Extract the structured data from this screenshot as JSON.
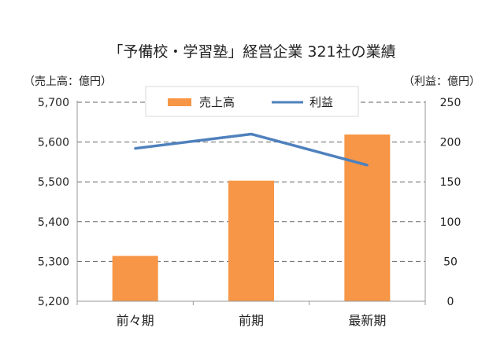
{
  "chart_data": {
    "type": "bar",
    "title": "「予備校・学習塾」経営企業 321社の業績",
    "left_unit": "（売上高：億円）",
    "right_unit": "（利益：億円）",
    "categories": [
      "前々期",
      "前期",
      "最新期"
    ],
    "ylim": [
      5200,
      5700
    ],
    "yticks": [
      "5,200",
      "5,300",
      "5,400",
      "5,500",
      "5,600",
      "5,700"
    ],
    "y2lim": [
      0,
      250
    ],
    "y2ticks": [
      "0",
      "50",
      "100",
      "150",
      "200",
      "250"
    ],
    "grid": "dashed",
    "legend_placement": "top-center",
    "series": [
      {
        "name": "売上高",
        "kind": "bar",
        "axis": "left",
        "color": "#f79646",
        "values": [
          5314,
          5503,
          5619
        ]
      },
      {
        "name": "利益",
        "kind": "line",
        "axis": "right",
        "color": "#4f81bd",
        "values": [
          192,
          210,
          171
        ]
      }
    ]
  }
}
